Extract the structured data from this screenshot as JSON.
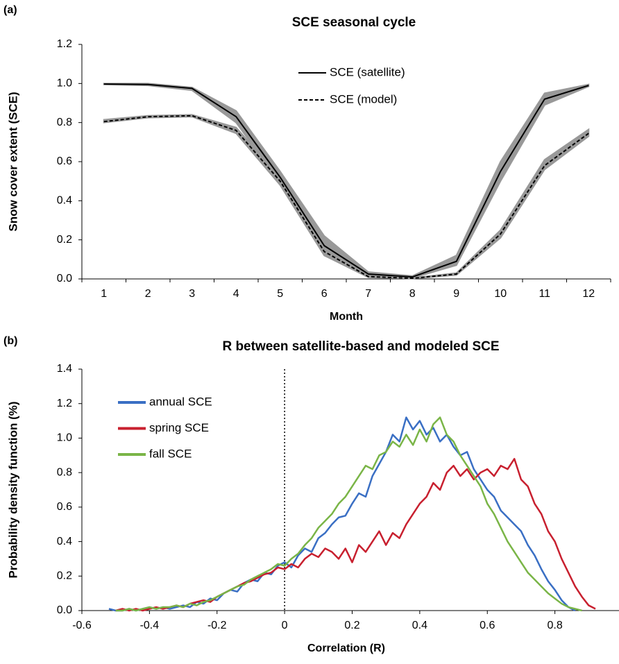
{
  "chart_data": [
    {
      "type": "line",
      "panel_label": "(a)",
      "title": "SCE seasonal cycle",
      "x_label": "Month",
      "y_label": "Snow cover extent (SCE)",
      "categories": [
        "1",
        "2",
        "3",
        "4",
        "5",
        "6",
        "7",
        "8",
        "9",
        "10",
        "11",
        "12"
      ],
      "ylim": [
        0,
        1.2
      ],
      "yticks": [
        {
          "value": 0,
          "label": "0.0"
        },
        0.2,
        0.4,
        0.6,
        0.8,
        {
          "value": 1,
          "label": "1.0"
        },
        1.2
      ],
      "legend": "upper center",
      "band_color": "#999999",
      "series": [
        {
          "name": "SCE (satellite)",
          "color": "#000000",
          "style": "solid",
          "values": [
            0.997,
            0.995,
            0.975,
            0.83,
            0.52,
            0.17,
            0.025,
            0.01,
            0.09,
            0.55,
            0.92,
            0.99
          ],
          "band_low": [
            0.995,
            0.99,
            0.965,
            0.8,
            0.49,
            0.12,
            0.015,
            0.005,
            0.07,
            0.5,
            0.89,
            0.985
          ],
          "band_high": [
            1.0,
            1.0,
            0.98,
            0.86,
            0.55,
            0.22,
            0.035,
            0.015,
            0.12,
            0.6,
            0.95,
            0.995
          ]
        },
        {
          "name": "SCE (model)",
          "color": "#000000",
          "style": "dashed",
          "values": [
            0.805,
            0.83,
            0.835,
            0.76,
            0.5,
            0.14,
            0.012,
            0.003,
            0.025,
            0.23,
            0.58,
            0.745
          ],
          "band_low": [
            0.8,
            0.825,
            0.83,
            0.745,
            0.48,
            0.12,
            0.008,
            0.002,
            0.02,
            0.21,
            0.56,
            0.73
          ],
          "band_high": [
            0.815,
            0.835,
            0.84,
            0.775,
            0.52,
            0.17,
            0.018,
            0.005,
            0.03,
            0.25,
            0.61,
            0.765
          ]
        }
      ]
    },
    {
      "type": "line",
      "panel_label": "(b)",
      "title": "R between satellite-based and modeled SCE",
      "x_label": "Correlation (R)",
      "y_label": "Probability density function (%)",
      "xlim": [
        -0.6,
        1
      ],
      "xticks": [
        -0.6,
        -0.4,
        -0.2,
        0,
        0.2,
        0.4,
        0.6,
        0.8,
        1
      ],
      "ylim": [
        0,
        1.4
      ],
      "yticks": [
        {
          "value": 0,
          "label": "0.0"
        },
        0.2,
        0.4,
        0.6,
        0.8,
        {
          "value": 1,
          "label": "1.0"
        },
        1.2,
        1.4
      ],
      "reference_line_x": 0,
      "legend": "upper left",
      "x": [
        -0.52,
        -0.5,
        -0.48,
        -0.46,
        -0.44,
        -0.42,
        -0.4,
        -0.38,
        -0.36,
        -0.34,
        -0.32,
        -0.3,
        -0.28,
        -0.26,
        -0.24,
        -0.22,
        -0.2,
        -0.18,
        -0.16,
        -0.14,
        -0.12,
        -0.1,
        -0.08,
        -0.06,
        -0.04,
        -0.02,
        0,
        0.02,
        0.04,
        0.06,
        0.08,
        0.1,
        0.12,
        0.14,
        0.16,
        0.18,
        0.2,
        0.22,
        0.24,
        0.26,
        0.28,
        0.3,
        0.32,
        0.34,
        0.36,
        0.38,
        0.4,
        0.42,
        0.44,
        0.46,
        0.48,
        0.5,
        0.52,
        0.54,
        0.56,
        0.58,
        0.6,
        0.62,
        0.64,
        0.66,
        0.68,
        0.7,
        0.72,
        0.74,
        0.76,
        0.78,
        0.8,
        0.82,
        0.84,
        0.86,
        0.88,
        0.9,
        0.92
      ],
      "series": [
        {
          "name": "annual SCE",
          "color": "#3a6fc4",
          "values": [
            0.01,
            0,
            0,
            0.01,
            0,
            0.01,
            0.02,
            0.01,
            0.02,
            0.01,
            0.02,
            0.03,
            0.02,
            0.05,
            0.04,
            0.07,
            0.06,
            0.1,
            0.12,
            0.11,
            0.16,
            0.18,
            0.17,
            0.22,
            0.21,
            0.26,
            0.28,
            0.25,
            0.32,
            0.36,
            0.34,
            0.42,
            0.45,
            0.5,
            0.54,
            0.55,
            0.62,
            0.68,
            0.66,
            0.78,
            0.85,
            0.92,
            1.02,
            0.98,
            1.12,
            1.05,
            1.1,
            1.02,
            1.06,
            0.98,
            1.02,
            0.95,
            0.9,
            0.92,
            0.82,
            0.76,
            0.7,
            0.66,
            0.58,
            0.54,
            0.5,
            0.46,
            0.38,
            0.32,
            0.24,
            0.17,
            0.12,
            0.06,
            0.02,
            0,
            null,
            null,
            null
          ]
        },
        {
          "name": "spring SCE",
          "color": "#c8202f",
          "values": [
            null,
            0,
            0.01,
            0,
            0.01,
            0,
            0.01,
            0.02,
            0.01,
            0.02,
            0.03,
            0.02,
            0.04,
            0.05,
            0.06,
            0.05,
            0.08,
            0.1,
            0.12,
            0.14,
            0.16,
            0.17,
            0.19,
            0.21,
            0.22,
            0.25,
            0.24,
            0.27,
            0.25,
            0.3,
            0.33,
            0.31,
            0.36,
            0.34,
            0.3,
            0.36,
            0.28,
            0.38,
            0.34,
            0.4,
            0.46,
            0.38,
            0.45,
            0.42,
            0.5,
            0.56,
            0.62,
            0.66,
            0.74,
            0.7,
            0.8,
            0.84,
            0.78,
            0.82,
            0.76,
            0.8,
            0.82,
            0.78,
            0.84,
            0.82,
            0.88,
            0.76,
            0.72,
            0.62,
            0.56,
            0.46,
            0.4,
            0.3,
            0.22,
            0.14,
            0.08,
            0.03,
            0.01
          ]
        },
        {
          "name": "fall SCE",
          "color": "#7ab547",
          "values": [
            null,
            0,
            0,
            0.01,
            0,
            0.01,
            0.02,
            0.01,
            0.02,
            0.02,
            0.03,
            0.02,
            0.04,
            0.03,
            0.05,
            0.06,
            0.08,
            0.1,
            0.12,
            0.14,
            0.15,
            0.18,
            0.2,
            0.22,
            0.24,
            0.27,
            0.26,
            0.3,
            0.33,
            0.38,
            0.42,
            0.48,
            0.52,
            0.56,
            0.62,
            0.66,
            0.72,
            0.78,
            0.84,
            0.82,
            0.9,
            0.92,
            0.98,
            0.95,
            1.02,
            0.96,
            1.05,
            0.98,
            1.08,
            1.12,
            1.02,
            0.98,
            0.9,
            0.84,
            0.78,
            0.72,
            0.62,
            0.56,
            0.48,
            0.4,
            0.34,
            0.28,
            0.22,
            0.18,
            0.14,
            0.1,
            0.07,
            0.04,
            0.02,
            0.01,
            0,
            null,
            null
          ]
        }
      ]
    }
  ]
}
